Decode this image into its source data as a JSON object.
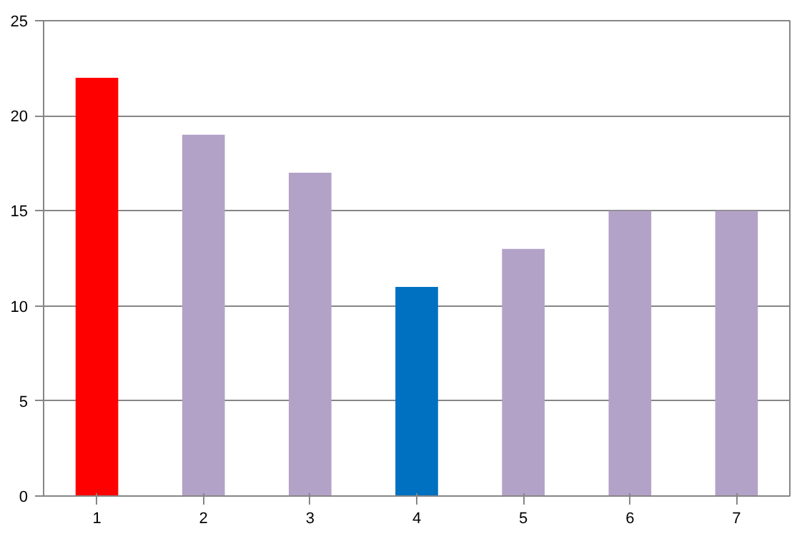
{
  "chart_data": {
    "type": "bar",
    "categories": [
      "1",
      "2",
      "3",
      "4",
      "5",
      "6",
      "7"
    ],
    "values": [
      22,
      19,
      17,
      11,
      13,
      15,
      15
    ],
    "colors": [
      "#ff0000",
      "#b3a2c7",
      "#b3a2c7",
      "#0070c0",
      "#b3a2c7",
      "#b3a2c7",
      "#b3a2c7"
    ],
    "ylim": [
      0,
      25
    ],
    "yticks": [
      0,
      5,
      10,
      15,
      20,
      25
    ],
    "grid": "y"
  }
}
